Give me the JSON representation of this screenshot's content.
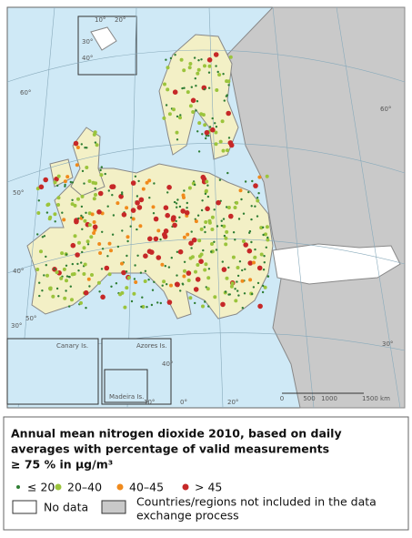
{
  "map": {
    "graticule_labels": [
      "60°",
      "50°",
      "40°",
      "10°",
      "20°",
      "30°",
      "40°",
      "50°",
      "60°",
      "0°",
      "10°",
      "20°",
      "30°",
      "40°",
      "30°"
    ],
    "insets": [
      "Canary Is.",
      "Azores Is.",
      "Madeira Is."
    ],
    "scale": [
      "0",
      "500",
      "1000",
      "1500 km"
    ]
  },
  "legend": {
    "title_lines": [
      "Annual mean nitrogen dioxide 2010, based on daily",
      "averages with percentage  of valid measurements",
      "≥ 75 %  in µg/m³"
    ],
    "items": [
      {
        "label": "≤ 20",
        "color": "#2e7d32"
      },
      {
        "label": "20–40",
        "color": "#9bc43c"
      },
      {
        "label": "40–45",
        "color": "#f08a1c"
      },
      {
        "label": "> 45",
        "color": "#c62828"
      }
    ],
    "no_data": "No data",
    "not_included": [
      "Countries/regions not included in the data",
      "exchange process"
    ]
  }
}
